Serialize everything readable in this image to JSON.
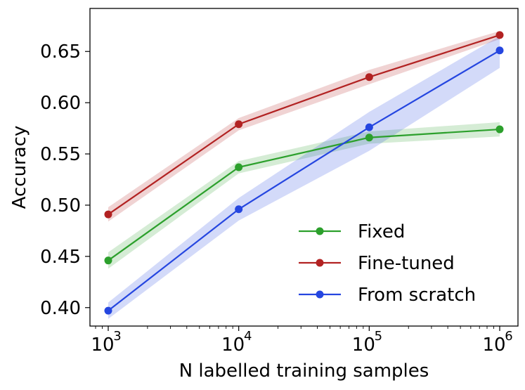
{
  "chart_data": {
    "type": "line",
    "title": "",
    "xlabel": "N labelled training samples",
    "ylabel": "Accuracy",
    "x_scale": "log",
    "x": [
      1000,
      10000,
      100000,
      1000000
    ],
    "x_tick_labels": [
      {
        "base": "10",
        "exp": "3"
      },
      {
        "base": "10",
        "exp": "4"
      },
      {
        "base": "10",
        "exp": "5"
      },
      {
        "base": "10",
        "exp": "6"
      }
    ],
    "xlim_log10": [
      2.86,
      6.14
    ],
    "ylim": [
      0.382,
      0.692
    ],
    "y_ticks": [
      0.4,
      0.45,
      0.5,
      0.55,
      0.6,
      0.65
    ],
    "y_tick_labels": [
      "0.40",
      "0.45",
      "0.50",
      "0.55",
      "0.60",
      "0.65"
    ],
    "grid": false,
    "legend_position": "lower-right",
    "series": [
      {
        "name": "Fixed",
        "color": "#2ca02c",
        "values": [
          0.446,
          0.537,
          0.566,
          0.574
        ],
        "lower": [
          0.438,
          0.531,
          0.56,
          0.567
        ],
        "upper": [
          0.454,
          0.543,
          0.572,
          0.581
        ]
      },
      {
        "name": "Fine-tuned",
        "color": "#b22222",
        "values": [
          0.491,
          0.579,
          0.625,
          0.666
        ],
        "lower": [
          0.484,
          0.573,
          0.618,
          0.662
        ],
        "upper": [
          0.498,
          0.585,
          0.632,
          0.67
        ]
      },
      {
        "name": "From scratch",
        "color": "#2546e0",
        "values": [
          0.397,
          0.496,
          0.576,
          0.651
        ],
        "lower": [
          0.389,
          0.485,
          0.553,
          0.634
        ],
        "upper": [
          0.405,
          0.507,
          0.591,
          0.665
        ]
      }
    ]
  }
}
